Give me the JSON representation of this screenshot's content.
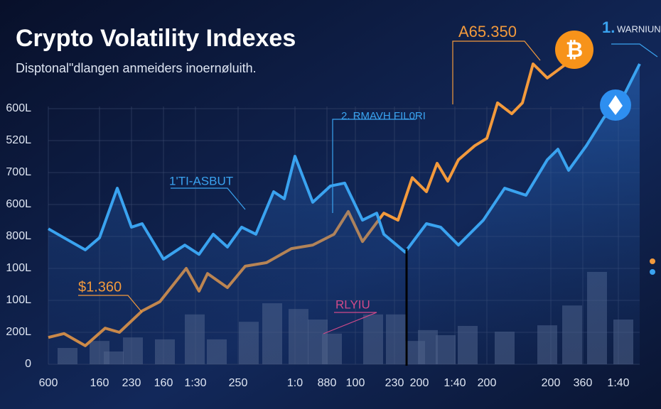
{
  "chart_data": {
    "type": "line",
    "title": "Crypto Volatility Indexes",
    "subtitle": "Disptonal\"dlangen anmeiders inoernøluith.",
    "xlim": [
      0,
      832
    ],
    "ylim": [
      0,
      1040
    ],
    "grid": true,
    "yticks": [
      {
        "value": 0,
        "label": "0"
      },
      {
        "value": 100,
        "label": "200L"
      },
      {
        "value": 200,
        "label": "100L"
      },
      {
        "value": 300,
        "label": "100L"
      },
      {
        "value": 400,
        "label": "800L"
      },
      {
        "value": 500,
        "label": "600L"
      },
      {
        "value": 600,
        "label": "700L"
      },
      {
        "value": 700,
        "label": "520L"
      },
      {
        "value": 800,
        "label": "600L"
      }
    ],
    "xticks": [
      {
        "value": 0,
        "label": "600"
      },
      {
        "value": 72,
        "label": "160"
      },
      {
        "value": 117,
        "label": "230"
      },
      {
        "value": 162,
        "label": "160"
      },
      {
        "value": 207,
        "label": "1:30"
      },
      {
        "value": 267,
        "label": "250"
      },
      {
        "value": 347,
        "label": "1:0"
      },
      {
        "value": 392,
        "label": "880"
      },
      {
        "value": 432,
        "label": "100"
      },
      {
        "value": 487,
        "label": "230"
      },
      {
        "value": 522,
        "label": "200"
      },
      {
        "value": 572,
        "label": "1:40"
      },
      {
        "value": 617,
        "label": "200"
      },
      {
        "value": 707,
        "label": "200"
      },
      {
        "value": 752,
        "label": "360"
      },
      {
        "value": 802,
        "label": "1:40"
      }
    ],
    "series": [
      {
        "color": "#f39a3c",
        "x": [
          0,
          22,
          52,
          80,
          100,
          132,
          157,
          194,
          212,
          224,
          252,
          277,
          307,
          342,
          372,
          402,
          422,
          442,
          472,
          492,
          512,
          532,
          547,
          562,
          577,
          600,
          617,
          632,
          652,
          667,
          682,
          702,
          722,
          742
        ],
        "values": [
          84,
          96,
          58,
          113,
          100,
          167,
          196,
          300,
          229,
          284,
          240,
          307,
          318,
          362,
          373,
          407,
          478,
          384,
          473,
          451,
          584,
          540,
          629,
          573,
          640,
          684,
          707,
          818,
          784,
          818,
          940,
          896,
          929,
          962
        ]
      },
      {
        "color": "#3aa3f0",
        "x": [
          0,
          22,
          52,
          72,
          97,
          117,
          132,
          162,
          192,
          212,
          232,
          252,
          272,
          292,
          317,
          332,
          347,
          372,
          397,
          417,
          442,
          462,
          472,
          502,
          532,
          552,
          577,
          612,
          642,
          672,
          702,
          717,
          732,
          757,
          782,
          802,
          832
        ],
        "values": [
          424,
          396,
          358,
          396,
          551,
          429,
          440,
          329,
          373,
          344,
          407,
          367,
          429,
          407,
          540,
          518,
          651,
          507,
          558,
          567,
          451,
          473,
          407,
          351,
          440,
          429,
          373,
          451,
          551,
          529,
          640,
          673,
          607,
          684,
          773,
          807,
          940
        ]
      }
    ],
    "volume": {
      "color": "#5a6a8c",
      "x": [
        27,
        72,
        92,
        119,
        164,
        206,
        237,
        282,
        315,
        352,
        379,
        399,
        457,
        489,
        516,
        534,
        559,
        590,
        642,
        702,
        737,
        772,
        809
      ],
      "values": [
        51,
        73,
        40,
        84,
        78,
        156,
        78,
        133,
        191,
        173,
        140,
        96,
        156,
        156,
        73,
        107,
        91,
        120,
        102,
        122,
        184,
        289,
        140
      ]
    },
    "annotations": [
      "A65.350",
      "$1.360",
      "1.",
      "WARNIUN",
      "2. RMAVH FIL0RI",
      "1'TI-ASBUT",
      "RLYIU"
    ]
  }
}
